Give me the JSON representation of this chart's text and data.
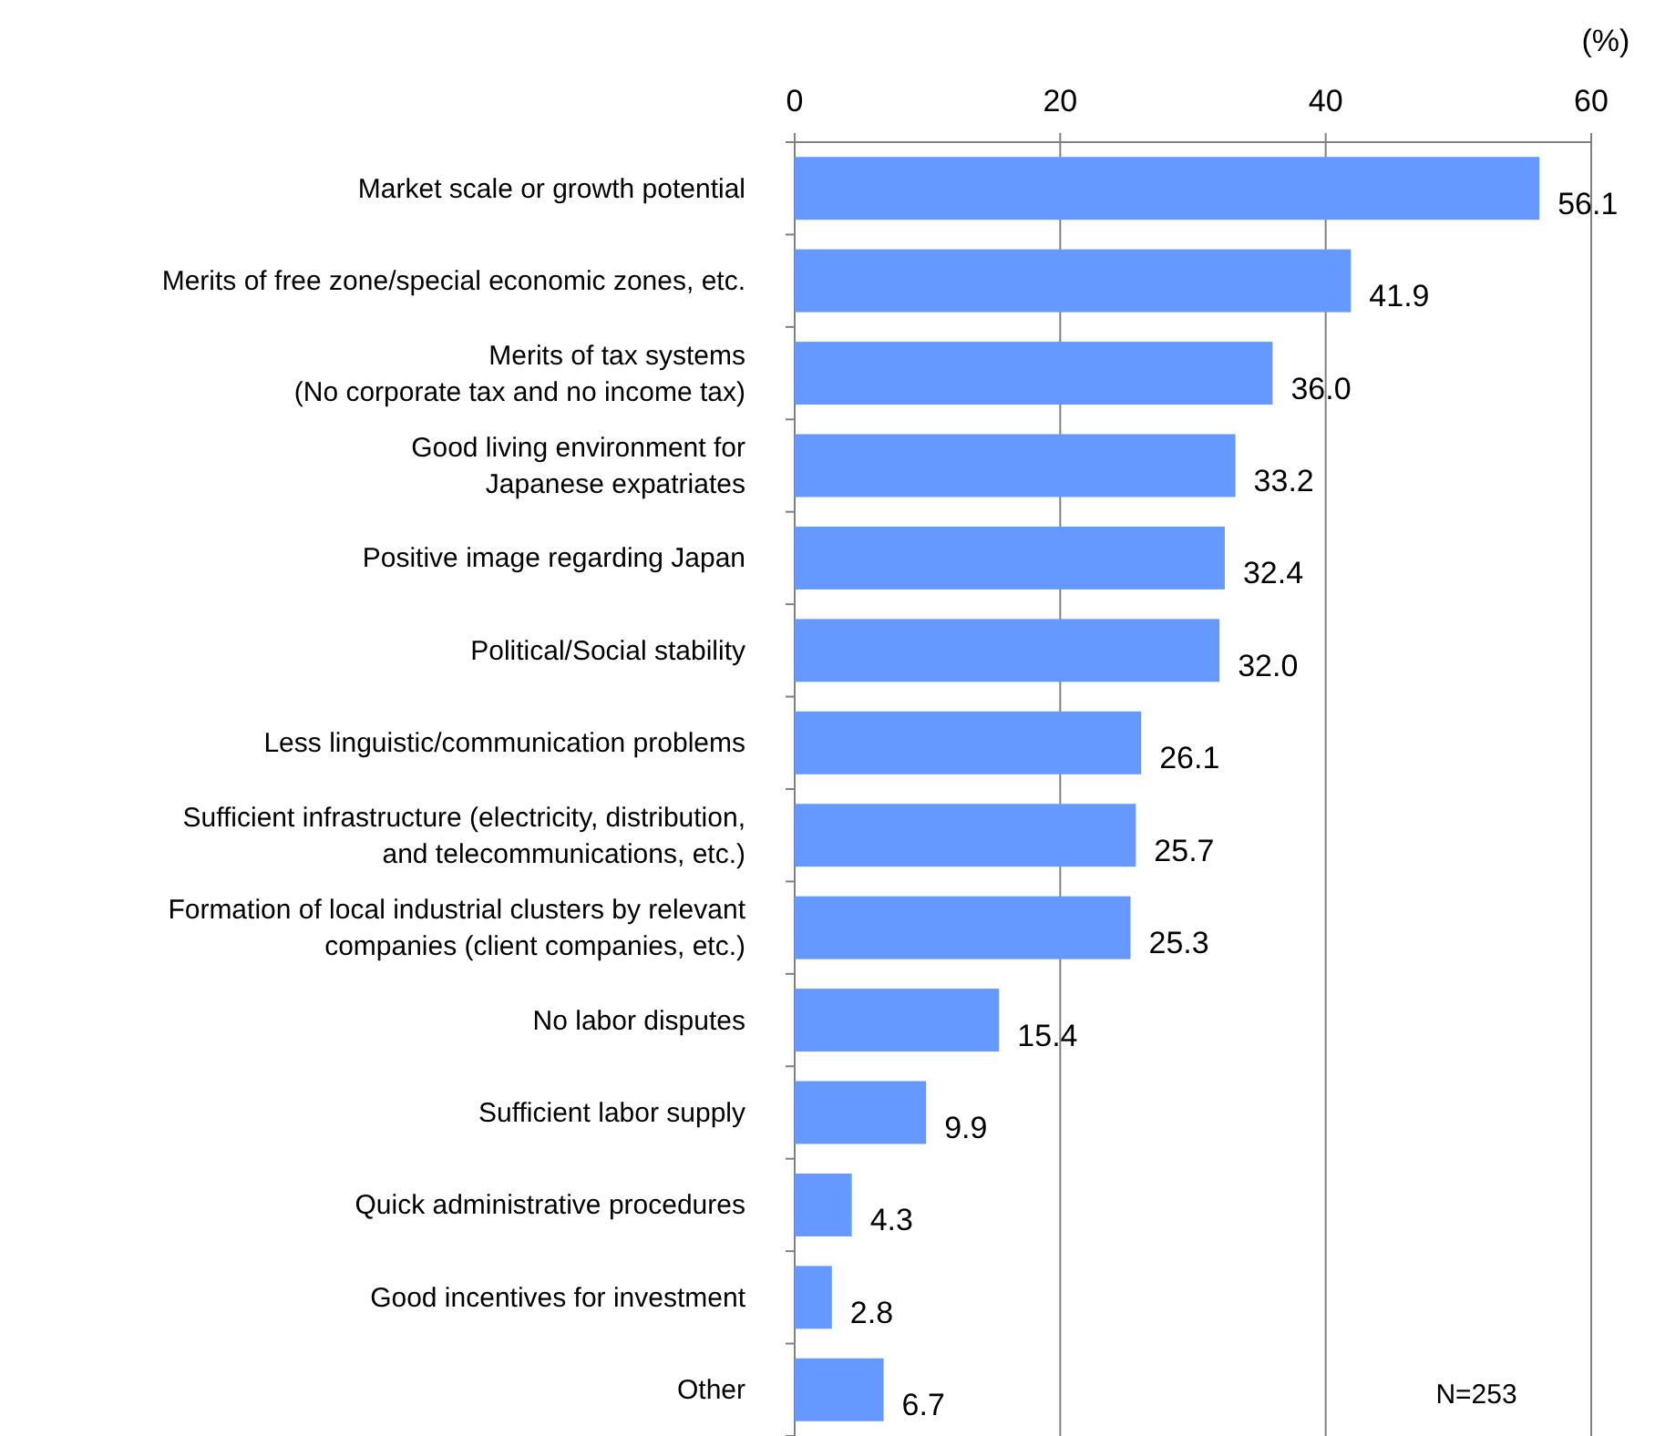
{
  "chart_data": {
    "type": "bar",
    "orientation": "horizontal",
    "xlabel": "(%)",
    "categories": [
      "Market scale or growth potential",
      "Merits of free zone/special economic zones, etc.",
      "Merits of tax systems\n(No corporate tax and no income tax)",
      "Good living environment for\nJapanese expatriates",
      "Positive image regarding Japan",
      "Political/Social stability",
      "Less linguistic/communication problems",
      "Sufficient infrastructure (electricity, distribution,\nand telecommunications, etc.)",
      "Formation of local industrial clusters by relevant\ncompanies (client companies, etc.)",
      "No labor disputes",
      "Sufficient labor supply",
      "Quick administrative procedures",
      "Good incentives for investment",
      "Other"
    ],
    "values": [
      56.1,
      41.9,
      36.0,
      33.2,
      32.4,
      32.0,
      26.1,
      25.7,
      25.3,
      15.4,
      9.9,
      4.3,
      2.8,
      6.7
    ],
    "value_labels": [
      "56.1",
      "41.9",
      "36.0",
      "33.2",
      "32.4",
      "32.0",
      "26.1",
      "25.7",
      "25.3",
      "15.4",
      "9.9",
      "4.3",
      "2.8",
      "6.7"
    ],
    "color": "#6699ff",
    "xlim": [
      0,
      60
    ],
    "xticks": [
      0,
      20,
      40,
      60
    ],
    "grid": "x",
    "annotations": [
      "N=253"
    ]
  }
}
